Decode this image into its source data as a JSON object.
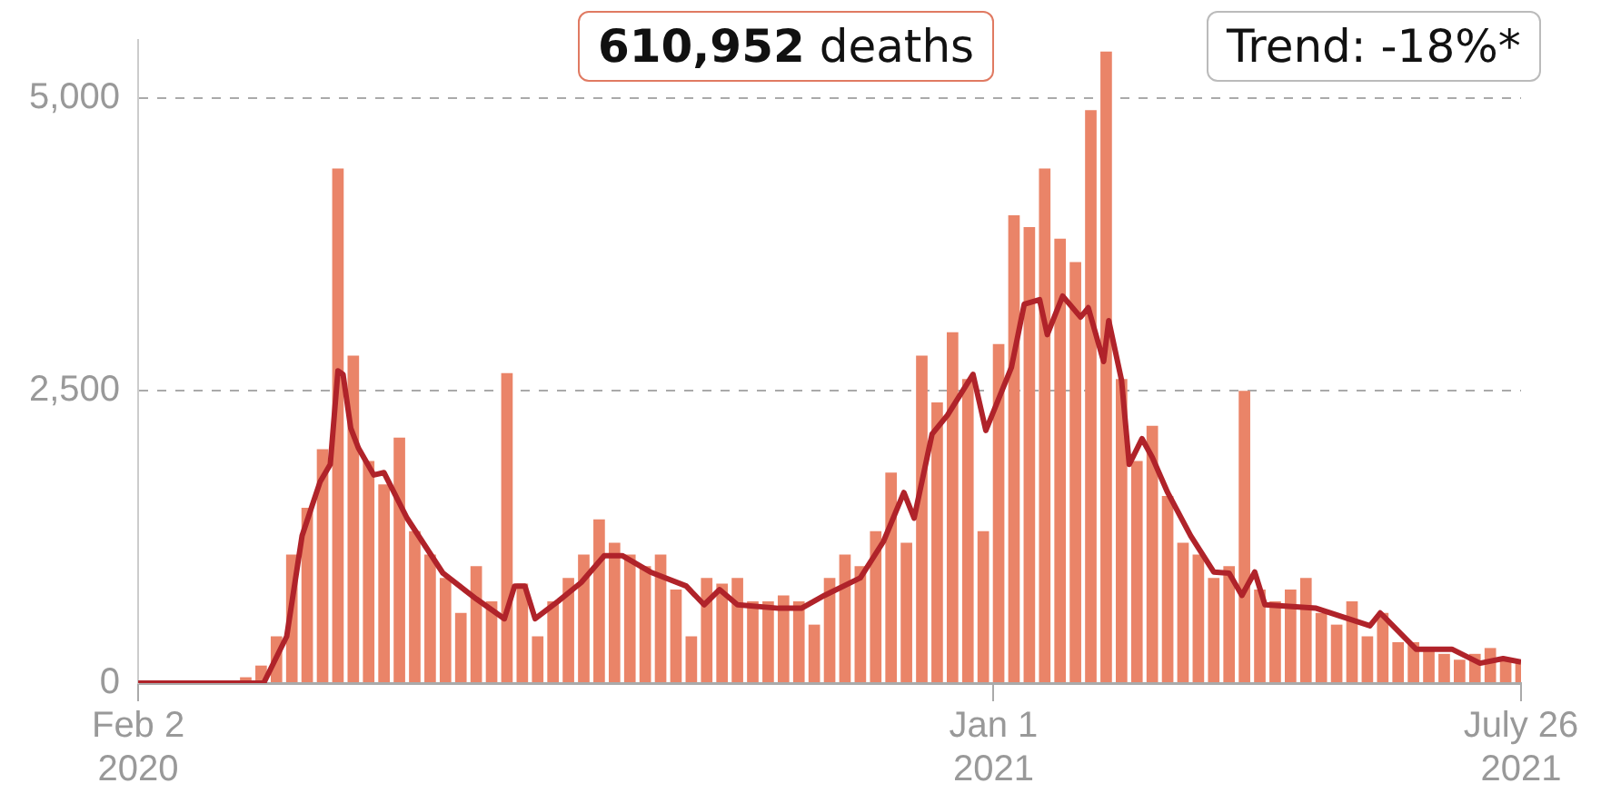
{
  "chart_data": {
    "type": "bar",
    "annotations": [
      "610,952 deaths",
      "Trend: -18%*"
    ],
    "series": [
      {
        "color": "#ea8468",
        "x": [
          "2020-02-02",
          "2020-02-08",
          "2020-02-14",
          "2020-02-20",
          "2020-02-26",
          "2020-03-03",
          "2020-03-09",
          "2020-03-15",
          "2020-03-21",
          "2020-03-27",
          "2020-04-02",
          "2020-04-08",
          "2020-04-14",
          "2020-04-20",
          "2020-04-26",
          "2020-05-02",
          "2020-05-08",
          "2020-05-14",
          "2020-05-20",
          "2020-05-26",
          "2020-06-01",
          "2020-06-07",
          "2020-06-13",
          "2020-06-19",
          "2020-06-25",
          "2020-07-01",
          "2020-07-07",
          "2020-07-13",
          "2020-07-19",
          "2020-07-25",
          "2020-07-31",
          "2020-08-06",
          "2020-08-12",
          "2020-08-18",
          "2020-08-24",
          "2020-08-30",
          "2020-09-05",
          "2020-09-11",
          "2020-09-17",
          "2020-09-23",
          "2020-09-29",
          "2020-10-05",
          "2020-10-11",
          "2020-10-17",
          "2020-10-23",
          "2020-10-29",
          "2020-11-04",
          "2020-11-10",
          "2020-11-16",
          "2020-11-22",
          "2020-11-28",
          "2020-12-04",
          "2020-12-10",
          "2020-12-16",
          "2020-12-22",
          "2020-12-28",
          "2021-01-03",
          "2021-01-09",
          "2021-01-15",
          "2021-01-21",
          "2021-01-27",
          "2021-02-02",
          "2021-02-08",
          "2021-02-14",
          "2021-02-20",
          "2021-02-26",
          "2021-03-04",
          "2021-03-10",
          "2021-03-16",
          "2021-03-22",
          "2021-03-28",
          "2021-04-03",
          "2021-04-09",
          "2021-04-15",
          "2021-04-21",
          "2021-04-27",
          "2021-05-03",
          "2021-05-09",
          "2021-05-15",
          "2021-05-21",
          "2021-05-27",
          "2021-06-02",
          "2021-06-08",
          "2021-06-14",
          "2021-06-20",
          "2021-06-26",
          "2021-07-02",
          "2021-07-08",
          "2021-07-14",
          "2021-07-20",
          "2021-07-26"
        ],
        "values": [
          0,
          0,
          0,
          0,
          0,
          0,
          10,
          50,
          150,
          400,
          1100,
          1500,
          2000,
          4400,
          2800,
          1900,
          1700,
          2100,
          1300,
          1100,
          900,
          600,
          1000,
          700,
          2650,
          850,
          400,
          700,
          900,
          1100,
          1400,
          1200,
          1100,
          1000,
          1100,
          800,
          400,
          900,
          850,
          900,
          700,
          700,
          750,
          700,
          500,
          900,
          1100,
          1000,
          1300,
          1800,
          1200,
          2800,
          2400,
          3000,
          2600,
          1300,
          2900,
          4000,
          3900,
          4400,
          3800,
          3600,
          4900,
          5400,
          2600,
          1900,
          2200,
          1600,
          1200,
          1100,
          900,
          1000,
          2500,
          800,
          700,
          800,
          900,
          600,
          500,
          700,
          400,
          600,
          350,
          350,
          300,
          250,
          200,
          250,
          300,
          200,
          200
        ]
      },
      {
        "type": "line",
        "color": "#b0232a",
        "x": [
          "2020-02-02",
          "2020-03-22",
          "2020-03-31",
          "2020-04-06",
          "2020-04-13",
          "2020-04-17",
          "2020-04-20",
          "2020-04-22",
          "2020-04-25",
          "2020-04-28",
          "2020-05-04",
          "2020-05-08",
          "2020-05-17",
          "2020-05-31",
          "2020-06-13",
          "2020-06-24",
          "2020-06-28",
          "2020-07-02",
          "2020-07-06",
          "2020-07-15",
          "2020-07-24",
          "2020-08-02",
          "2020-08-09",
          "2020-08-20",
          "2020-09-03",
          "2020-09-10",
          "2020-09-16",
          "2020-09-23",
          "2020-10-09",
          "2020-10-18",
          "2020-10-27",
          "2020-11-10",
          "2020-11-19",
          "2020-11-27",
          "2020-12-01",
          "2020-12-08",
          "2020-12-14",
          "2020-12-24",
          "2020-12-29",
          "2021-01-08",
          "2021-01-13",
          "2021-01-19",
          "2021-01-22",
          "2021-01-28",
          "2021-02-04",
          "2021-02-07",
          "2021-02-13",
          "2021-02-15",
          "2021-02-20",
          "2021-02-23",
          "2021-02-28",
          "2021-03-04",
          "2021-03-10",
          "2021-03-19",
          "2021-03-28",
          "2021-04-03",
          "2021-04-08",
          "2021-04-13",
          "2021-04-17",
          "2021-05-07",
          "2021-05-28",
          "2021-06-01",
          "2021-06-15",
          "2021-06-29",
          "2021-07-10",
          "2021-07-19",
          "2021-07-26"
        ],
        "values": [
          0,
          0,
          400,
          1260,
          1720,
          1870,
          2670,
          2640,
          2180,
          2010,
          1780,
          1800,
          1410,
          940,
          720,
          550,
          830,
          830,
          550,
          700,
          860,
          1090,
          1090,
          950,
          830,
          670,
          800,
          670,
          640,
          640,
          750,
          900,
          1210,
          1630,
          1410,
          2130,
          2290,
          2640,
          2160,
          2700,
          3240,
          3280,
          2980,
          3310,
          3130,
          3210,
          2750,
          3100,
          2590,
          1870,
          2090,
          1930,
          1630,
          1260,
          950,
          940,
          750,
          950,
          670,
          640,
          490,
          600,
          290,
          290,
          170,
          210,
          180
        ]
      }
    ],
    "xlim": [
      "2020-02-02",
      "2021-07-26"
    ],
    "xticks": [
      {
        "value": "2020-02-02",
        "label": "Feb 2\n2020"
      },
      {
        "value": "2021-01-01",
        "label": "Jan 1\n2021"
      },
      {
        "value": "2021-07-26",
        "label": "July 26\n2021"
      }
    ],
    "ylim": [
      0,
      5500
    ],
    "yticks": [
      {
        "value": 0,
        "label": "0"
      },
      {
        "value": 2500,
        "label": "2,500"
      },
      {
        "value": 5000,
        "label": "5,000"
      }
    ],
    "grid": "y",
    "legend": false
  }
}
